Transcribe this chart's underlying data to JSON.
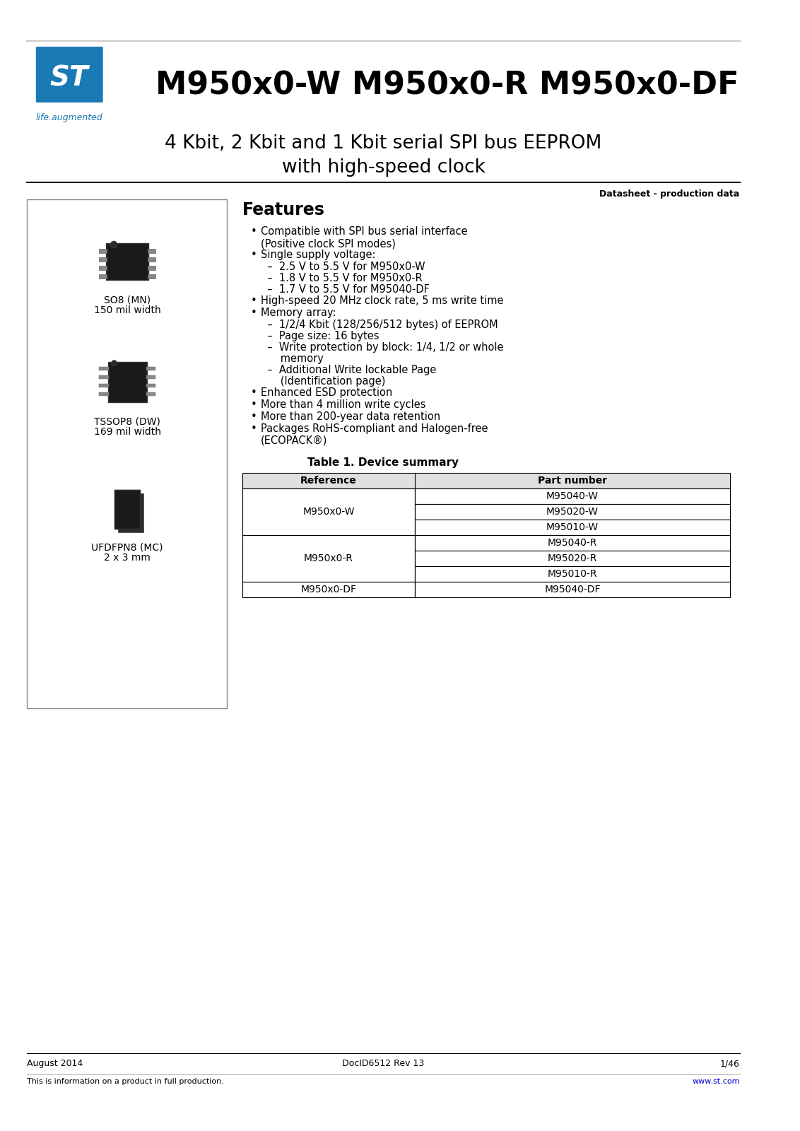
{
  "bg_color": "#ffffff",
  "title_main": "M950x0-W M950x0-R M950x0-DF",
  "subtitle": "4 Kbit, 2 Kbit and 1 Kbit serial SPI bus EEPROM\nwith high-speed clock",
  "datasheet_label": "Datasheet - production data",
  "features_title": "Features",
  "features": [
    "Compatible with SPI bus serial interface\n(Positive clock SPI modes)",
    "Single supply voltage:\n  –  2.5 V to 5.5 V for M950x0-W\n  –  1.8 V to 5.5 V for M950x0-R\n  –  1.7 V to 5.5 V for M95040-DF",
    "High-speed 20 MHz clock rate, 5 ms write time",
    "Memory array:\n  –  1/2/4 Kbit (128/256/512 bytes) of EEPROM\n  –  Page size: 16 bytes\n  –  Write protection by block: 1/4, 1/2 or whole\n      memory\n  –  Additional Write lockable Page\n      (Identification page)",
    "Enhanced ESD protection",
    "More than 4 million write cycles",
    "More than 200-year data retention",
    "Packages RoHS-compliant and Halogen-free\n(ECOPACK®)"
  ],
  "package1_name": "SO8 (MN)",
  "package1_desc": "150 mil width",
  "package2_name": "TSSOP8 (DW)",
  "package2_desc": "169 mil width",
  "package3_name": "UFDFPN8 (MC)",
  "package3_desc": "2 x 3 mm",
  "table_title": "Table 1. Device summary",
  "table_headers": [
    "Reference",
    "Part number"
  ],
  "table_data": [
    [
      "",
      "M95040-W"
    ],
    [
      "M950x0-W",
      "M95020-W"
    ],
    [
      "",
      "M95010-W"
    ],
    [
      "",
      "M95040-R"
    ],
    [
      "M950x0-R",
      "M95020-R"
    ],
    [
      "",
      "M95010-R"
    ],
    [
      "M950x0-DF",
      "M95040-DF"
    ]
  ],
  "footer_left": "August 2014",
  "footer_center": "DocID6512 Rev 13",
  "footer_right": "1/46",
  "footer_note": "This is information on a product in full production.",
  "footer_url": "www.st.com",
  "st_blue": "#1a7ab5",
  "header_line_color": "#000000",
  "table_border_color": "#000000",
  "table_header_bg": "#d0d0d0"
}
